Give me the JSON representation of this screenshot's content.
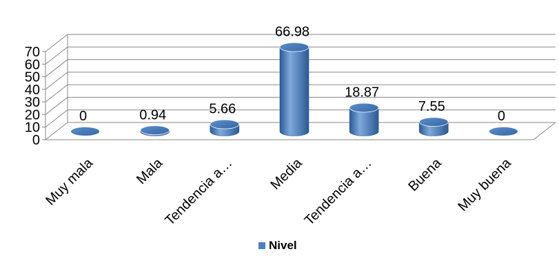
{
  "chart_data": {
    "type": "bar",
    "style": "3d-cylinder",
    "categories": [
      "Muy mala",
      "Mala",
      "Tendencia a…",
      "Media",
      "Tendencia a…",
      "Buena",
      "Muy buena"
    ],
    "series": [
      {
        "name": "Nivel",
        "values": [
          0,
          0.94,
          5.66,
          66.98,
          18.87,
          7.55,
          0
        ],
        "data_labels": [
          "0",
          "0.94",
          "5.66",
          "66.98",
          "18.87",
          "7.55",
          "0"
        ]
      }
    ],
    "title": "",
    "xlabel": "",
    "ylabel": "",
    "ylim": [
      0,
      70
    ],
    "yticks": [
      0,
      10,
      20,
      30,
      40,
      50,
      60,
      70
    ],
    "grid": true,
    "legend": "bottom",
    "colors": {
      "bar": "#4F81BD",
      "bar_dark": "#2A5A93",
      "bar_light": "#7FA9DC",
      "grid": "#868686",
      "legend_marker": "#4F81BD"
    }
  }
}
